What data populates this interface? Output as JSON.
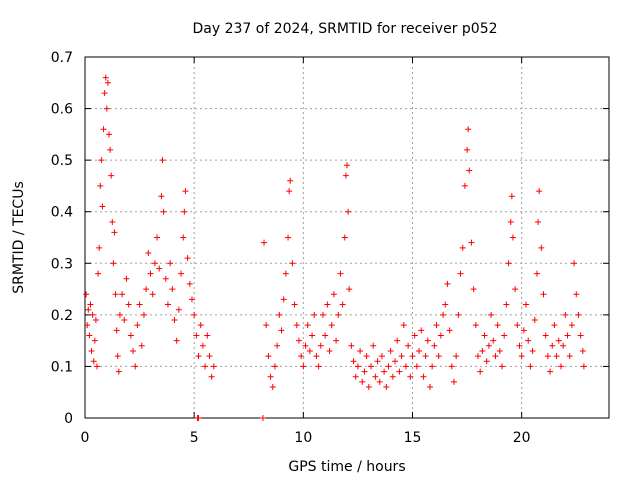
{
  "chart_data": {
    "type": "scatter",
    "title": "Day 237 of 2024, SRMTID for receiver p052",
    "xlabel": "GPS time / hours",
    "ylabel": "SRMTID / TECUs",
    "xlim": [
      0,
      24
    ],
    "ylim": [
      0,
      0.7
    ],
    "xticks": [
      0,
      5,
      10,
      15,
      20
    ],
    "yticks": [
      0,
      0.1,
      0.2,
      0.3,
      0.4,
      0.5,
      0.6,
      0.7
    ],
    "xtick_labels": [
      "0",
      "5",
      "10",
      "15",
      "20"
    ],
    "ytick_labels": [
      "0",
      "0.1",
      "0.2",
      "0.3",
      "0.4",
      "0.5",
      "0.6",
      "0.7"
    ],
    "grid": true,
    "marker": "+",
    "color": "#ff0000",
    "series": [
      {
        "name": "SRMTID",
        "points": [
          [
            0.05,
            0.24
          ],
          [
            0.1,
            0.18
          ],
          [
            0.15,
            0.21
          ],
          [
            0.2,
            0.16
          ],
          [
            0.25,
            0.22
          ],
          [
            0.3,
            0.13
          ],
          [
            0.35,
            0.2
          ],
          [
            0.4,
            0.11
          ],
          [
            0.45,
            0.15
          ],
          [
            0.5,
            0.19
          ],
          [
            0.55,
            0.1
          ],
          [
            0.6,
            0.28
          ],
          [
            0.65,
            0.33
          ],
          [
            0.7,
            0.45
          ],
          [
            0.75,
            0.5
          ],
          [
            0.8,
            0.41
          ],
          [
            0.85,
            0.56
          ],
          [
            0.9,
            0.63
          ],
          [
            0.95,
            0.66
          ],
          [
            1.0,
            0.6
          ],
          [
            1.05,
            0.65
          ],
          [
            1.1,
            0.55
          ],
          [
            1.15,
            0.52
          ],
          [
            1.2,
            0.47
          ],
          [
            1.25,
            0.38
          ],
          [
            1.3,
            0.3
          ],
          [
            1.35,
            0.36
          ],
          [
            1.4,
            0.24
          ],
          [
            1.45,
            0.17
          ],
          [
            1.5,
            0.12
          ],
          [
            1.55,
            0.09
          ],
          [
            1.6,
            0.2
          ],
          [
            1.7,
            0.24
          ],
          [
            1.8,
            0.19
          ],
          [
            1.9,
            0.27
          ],
          [
            2.0,
            0.22
          ],
          [
            2.1,
            0.16
          ],
          [
            2.2,
            0.13
          ],
          [
            2.3,
            0.1
          ],
          [
            2.4,
            0.18
          ],
          [
            2.5,
            0.22
          ],
          [
            2.6,
            0.14
          ],
          [
            2.7,
            0.2
          ],
          [
            2.8,
            0.25
          ],
          [
            2.9,
            0.32
          ],
          [
            3.0,
            0.28
          ],
          [
            3.1,
            0.24
          ],
          [
            3.2,
            0.3
          ],
          [
            3.3,
            0.35
          ],
          [
            3.4,
            0.29
          ],
          [
            3.5,
            0.43
          ],
          [
            3.55,
            0.5
          ],
          [
            3.6,
            0.4
          ],
          [
            3.7,
            0.27
          ],
          [
            3.8,
            0.22
          ],
          [
            3.9,
            0.3
          ],
          [
            4.0,
            0.25
          ],
          [
            4.1,
            0.19
          ],
          [
            4.2,
            0.15
          ],
          [
            4.3,
            0.21
          ],
          [
            4.4,
            0.28
          ],
          [
            4.5,
            0.35
          ],
          [
            4.55,
            0.4
          ],
          [
            4.6,
            0.44
          ],
          [
            4.7,
            0.31
          ],
          [
            4.8,
            0.26
          ],
          [
            4.9,
            0.23
          ],
          [
            5.0,
            0.2
          ],
          [
            5.1,
            0.16
          ],
          [
            5.2,
            0.12
          ],
          [
            5.3,
            0.18
          ],
          [
            5.4,
            0.14
          ],
          [
            5.5,
            0.1
          ],
          [
            5.6,
            0.16
          ],
          [
            5.7,
            0.12
          ],
          [
            5.8,
            0.08
          ],
          [
            5.9,
            0.1
          ],
          [
            5.15,
            0.0
          ],
          [
            5.2,
            0.0
          ],
          [
            8.15,
            0.0
          ],
          [
            8.2,
            0.34
          ],
          [
            8.3,
            0.18
          ],
          [
            8.4,
            0.12
          ],
          [
            8.5,
            0.08
          ],
          [
            8.6,
            0.06
          ],
          [
            8.7,
            0.1
          ],
          [
            8.8,
            0.14
          ],
          [
            8.9,
            0.2
          ],
          [
            9.0,
            0.17
          ],
          [
            9.1,
            0.23
          ],
          [
            9.2,
            0.28
          ],
          [
            9.3,
            0.35
          ],
          [
            9.35,
            0.44
          ],
          [
            9.4,
            0.46
          ],
          [
            9.5,
            0.3
          ],
          [
            9.6,
            0.22
          ],
          [
            9.7,
            0.18
          ],
          [
            9.8,
            0.15
          ],
          [
            9.9,
            0.12
          ],
          [
            10.0,
            0.1
          ],
          [
            10.1,
            0.14
          ],
          [
            10.2,
            0.18
          ],
          [
            10.3,
            0.13
          ],
          [
            10.4,
            0.16
          ],
          [
            10.5,
            0.2
          ],
          [
            10.6,
            0.12
          ],
          [
            10.7,
            0.1
          ],
          [
            10.8,
            0.14
          ],
          [
            10.9,
            0.2
          ],
          [
            11.0,
            0.16
          ],
          [
            11.1,
            0.22
          ],
          [
            11.2,
            0.13
          ],
          [
            11.3,
            0.18
          ],
          [
            11.4,
            0.24
          ],
          [
            11.5,
            0.15
          ],
          [
            11.6,
            0.2
          ],
          [
            11.7,
            0.28
          ],
          [
            11.8,
            0.22
          ],
          [
            11.9,
            0.35
          ],
          [
            11.95,
            0.47
          ],
          [
            12.0,
            0.49
          ],
          [
            12.05,
            0.4
          ],
          [
            12.1,
            0.25
          ],
          [
            12.2,
            0.14
          ],
          [
            12.3,
            0.11
          ],
          [
            12.4,
            0.08
          ],
          [
            12.5,
            0.1
          ],
          [
            12.6,
            0.13
          ],
          [
            12.7,
            0.07
          ],
          [
            12.8,
            0.09
          ],
          [
            12.9,
            0.12
          ],
          [
            13.0,
            0.06
          ],
          [
            13.1,
            0.1
          ],
          [
            13.2,
            0.14
          ],
          [
            13.3,
            0.08
          ],
          [
            13.4,
            0.11
          ],
          [
            13.5,
            0.07
          ],
          [
            13.6,
            0.12
          ],
          [
            13.7,
            0.09
          ],
          [
            13.8,
            0.06
          ],
          [
            13.9,
            0.1
          ],
          [
            14.0,
            0.13
          ],
          [
            14.1,
            0.08
          ],
          [
            14.2,
            0.11
          ],
          [
            14.3,
            0.15
          ],
          [
            14.4,
            0.09
          ],
          [
            14.5,
            0.12
          ],
          [
            14.6,
            0.18
          ],
          [
            14.7,
            0.1
          ],
          [
            14.8,
            0.14
          ],
          [
            14.9,
            0.08
          ],
          [
            15.0,
            0.12
          ],
          [
            15.1,
            0.16
          ],
          [
            15.2,
            0.1
          ],
          [
            15.3,
            0.13
          ],
          [
            15.4,
            0.17
          ],
          [
            15.5,
            0.08
          ],
          [
            15.6,
            0.12
          ],
          [
            15.7,
            0.15
          ],
          [
            15.8,
            0.06
          ],
          [
            15.9,
            0.1
          ],
          [
            16.0,
            0.14
          ],
          [
            16.1,
            0.18
          ],
          [
            16.2,
            0.12
          ],
          [
            16.3,
            0.16
          ],
          [
            16.4,
            0.2
          ],
          [
            16.5,
            0.22
          ],
          [
            16.6,
            0.26
          ],
          [
            16.7,
            0.17
          ],
          [
            16.8,
            0.1
          ],
          [
            16.9,
            0.07
          ],
          [
            17.0,
            0.12
          ],
          [
            17.1,
            0.2
          ],
          [
            17.2,
            0.28
          ],
          [
            17.3,
            0.33
          ],
          [
            17.4,
            0.45
          ],
          [
            17.5,
            0.52
          ],
          [
            17.55,
            0.56
          ],
          [
            17.6,
            0.48
          ],
          [
            17.7,
            0.34
          ],
          [
            17.8,
            0.25
          ],
          [
            17.9,
            0.18
          ],
          [
            18.0,
            0.12
          ],
          [
            18.1,
            0.09
          ],
          [
            18.2,
            0.13
          ],
          [
            18.3,
            0.16
          ],
          [
            18.4,
            0.11
          ],
          [
            18.5,
            0.14
          ],
          [
            18.6,
            0.2
          ],
          [
            18.7,
            0.15
          ],
          [
            18.8,
            0.12
          ],
          [
            18.9,
            0.18
          ],
          [
            19.0,
            0.13
          ],
          [
            19.1,
            0.1
          ],
          [
            19.2,
            0.16
          ],
          [
            19.3,
            0.22
          ],
          [
            19.4,
            0.3
          ],
          [
            19.5,
            0.38
          ],
          [
            19.55,
            0.43
          ],
          [
            19.6,
            0.35
          ],
          [
            19.7,
            0.25
          ],
          [
            19.8,
            0.18
          ],
          [
            19.9,
            0.14
          ],
          [
            20.0,
            0.12
          ],
          [
            20.1,
            0.17
          ],
          [
            20.2,
            0.22
          ],
          [
            20.3,
            0.15
          ],
          [
            20.4,
            0.1
          ],
          [
            20.5,
            0.13
          ],
          [
            20.6,
            0.19
          ],
          [
            20.7,
            0.28
          ],
          [
            20.75,
            0.38
          ],
          [
            20.8,
            0.44
          ],
          [
            20.9,
            0.33
          ],
          [
            21.0,
            0.24
          ],
          [
            21.1,
            0.16
          ],
          [
            21.2,
            0.12
          ],
          [
            21.3,
            0.09
          ],
          [
            21.4,
            0.14
          ],
          [
            21.5,
            0.18
          ],
          [
            21.6,
            0.12
          ],
          [
            21.7,
            0.15
          ],
          [
            21.8,
            0.1
          ],
          [
            21.9,
            0.14
          ],
          [
            22.0,
            0.2
          ],
          [
            22.1,
            0.16
          ],
          [
            22.2,
            0.12
          ],
          [
            22.3,
            0.18
          ],
          [
            22.4,
            0.3
          ],
          [
            22.5,
            0.24
          ],
          [
            22.6,
            0.2
          ],
          [
            22.7,
            0.16
          ],
          [
            22.8,
            0.13
          ],
          [
            22.85,
            0.1
          ]
        ]
      }
    ]
  }
}
